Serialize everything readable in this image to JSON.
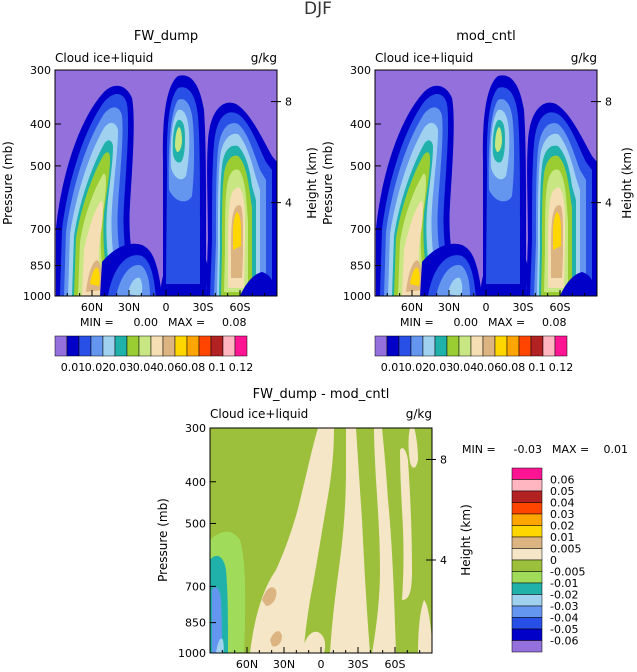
{
  "figure": {
    "title": "DJF"
  },
  "palette": {
    "main": [
      "#9370db",
      "#0000c8",
      "#2850e6",
      "#6496f0",
      "#a0d2f0",
      "#20b2aa",
      "#9acd32",
      "#c8e682",
      "#f5deb3",
      "#dcb482",
      "#ffd700",
      "#ffa500",
      "#ff4500",
      "#b22222",
      "#ffb6c1",
      "#ff1493"
    ],
    "diff": [
      "#9370db",
      "#0000c8",
      "#2850e6",
      "#6496f0",
      "#a0d2f0",
      "#20b2aa",
      "#a0dc5a",
      "#9cc03c",
      "#f5e6c8",
      "#dcb482",
      "#ffd700",
      "#ffa500",
      "#ff4500",
      "#b22222",
      "#ffb6c1",
      "#ff1493"
    ]
  },
  "chart_data": [
    {
      "type": "contour",
      "title": "FW_dump",
      "variable": "Cloud ice+liquid",
      "units": "g/kg",
      "ylabel": "Pressure (mb)",
      "ylabel_right": "Height (km)",
      "y_ticks": [
        "300",
        "400",
        "500",
        "700",
        "850",
        "1000"
      ],
      "y_tick_values": [
        300,
        400,
        500,
        700,
        850,
        1000
      ],
      "y_right_ticks": [
        "8",
        "4"
      ],
      "y_right_tick_values": [
        355,
        608
      ],
      "x_ticks": [
        "60N",
        "30N",
        "0",
        "30S",
        "60S"
      ],
      "x_tick_values": [
        60,
        30,
        0,
        -30,
        -60
      ],
      "xlim": [
        90,
        -90
      ],
      "ylim": [
        1000,
        300
      ],
      "min_label": "MIN =",
      "min_value": "0.00",
      "max_label": "MAX =",
      "max_value": "0.08",
      "levels": [
        "0.01",
        "0.02",
        "0.03",
        "0.04",
        "0.06",
        "0.08",
        "0.1",
        "0.12"
      ]
    },
    {
      "type": "contour",
      "title": "mod_cntl",
      "variable": "Cloud ice+liquid",
      "units": "g/kg",
      "ylabel": "Pressure (mb)",
      "ylabel_right": "Height (km)",
      "y_ticks": [
        "300",
        "400",
        "500",
        "700",
        "850",
        "1000"
      ],
      "y_tick_values": [
        300,
        400,
        500,
        700,
        850,
        1000
      ],
      "y_right_ticks": [
        "8",
        "4"
      ],
      "y_right_tick_values": [
        355,
        608
      ],
      "x_ticks": [
        "60N",
        "30N",
        "0",
        "30S",
        "60S"
      ],
      "x_tick_values": [
        60,
        30,
        0,
        -30,
        -60
      ],
      "xlim": [
        90,
        -90
      ],
      "ylim": [
        1000,
        300
      ],
      "min_label": "MIN =",
      "min_value": "0.00",
      "max_label": "MAX =",
      "max_value": "0.08",
      "levels": [
        "0.01",
        "0.02",
        "0.03",
        "0.04",
        "0.06",
        "0.08",
        "0.1",
        "0.12"
      ]
    },
    {
      "type": "contour",
      "title": "FW_dump - mod_cntl",
      "variable": "Cloud ice+liquid",
      "units": "g/kg",
      "ylabel": "Pressure (mb)",
      "ylabel_right": "Height (km)",
      "y_ticks": [
        "300",
        "400",
        "500",
        "700",
        "850",
        "1000"
      ],
      "y_tick_values": [
        300,
        400,
        500,
        700,
        850,
        1000
      ],
      "y_right_ticks": [
        "8",
        "4"
      ],
      "y_right_tick_values": [
        355,
        608
      ],
      "x_ticks": [
        "60N",
        "30N",
        "0",
        "30S",
        "60S"
      ],
      "x_tick_values": [
        60,
        30,
        0,
        -30,
        -60
      ],
      "xlim": [
        90,
        -90
      ],
      "ylim": [
        1000,
        300
      ],
      "min_label": "MIN =",
      "min_value": "-0.03",
      "max_label": "MAX =",
      "max_value": "0.01",
      "levels": [
        "0.06",
        "0.05",
        "0.04",
        "0.03",
        "0.02",
        "0.01",
        "0.005",
        "0",
        "-0.005",
        "-0.01",
        "-0.02",
        "-0.03",
        "-0.04",
        "-0.05",
        "-0.06"
      ]
    }
  ]
}
